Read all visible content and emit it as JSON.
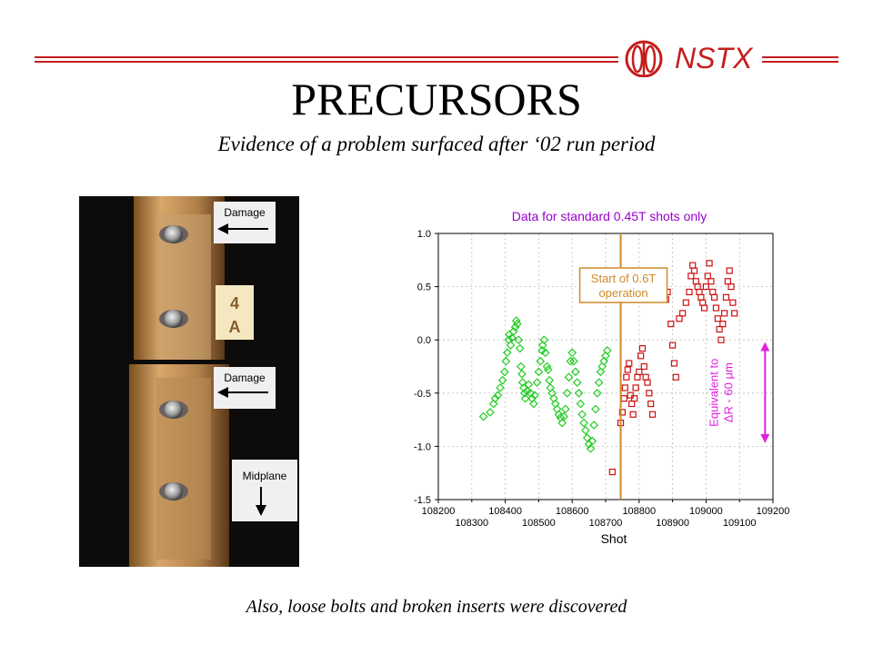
{
  "header": {
    "logo_text": "NSTX",
    "title": "PRECURSORS",
    "subtitle": "Evidence of a problem surfaced after ‘02 run period"
  },
  "photo": {
    "labels": {
      "damage_top": "Damage",
      "tag_line1": "4",
      "tag_line2": "A",
      "damage_bottom": "Damage",
      "midplane": "Midplane"
    }
  },
  "footer": {
    "text": "Also, loose bolts and broken inserts were discovered"
  },
  "chart_data": {
    "type": "scatter",
    "title": "Data for standard 0.45T shots only",
    "xlabel": "Shot",
    "ylabel": "",
    "xlim": [
      108200,
      109200
    ],
    "ylim": [
      -1.5,
      1.0
    ],
    "x_ticks_major": [
      "108200",
      "108400",
      "108600",
      "108800",
      "109000",
      "109200"
    ],
    "x_ticks_minor": [
      "108300",
      "108500",
      "108700",
      "108900",
      "109100"
    ],
    "y_ticks": [
      "1.0",
      "0.5",
      "0.0",
      "-0.5",
      "-1.0",
      "-1.5"
    ],
    "grid": true,
    "annotations": {
      "vline": {
        "x": 108745,
        "label_line1": "Start of 0.6T",
        "label_line2": "operation",
        "color": "#d08a2a"
      },
      "arrow": {
        "y_top": -0.02,
        "y_bottom": -0.97,
        "x": 109190,
        "label_line1": "Equivalent to",
        "label_line2": "ΔR - 60 μm",
        "color": "#e020e0"
      }
    },
    "series": [
      {
        "marker": "diamond",
        "color": "#22cc22",
        "points": [
          [
            108335,
            -0.72
          ],
          [
            108355,
            -0.68
          ],
          [
            108365,
            -0.6
          ],
          [
            108370,
            -0.55
          ],
          [
            108378,
            -0.52
          ],
          [
            108385,
            -0.45
          ],
          [
            108392,
            -0.38
          ],
          [
            108398,
            -0.3
          ],
          [
            108402,
            -0.2
          ],
          [
            108406,
            -0.12
          ],
          [
            108410,
            0.0
          ],
          [
            108412,
            0.05
          ],
          [
            108416,
            -0.05
          ],
          [
            108420,
            0.02
          ],
          [
            108425,
            0.08
          ],
          [
            108430,
            0.12
          ],
          [
            108433,
            0.18
          ],
          [
            108436,
            0.15
          ],
          [
            108440,
            0.0
          ],
          [
            108444,
            -0.08
          ],
          [
            108447,
            -0.25
          ],
          [
            108450,
            -0.32
          ],
          [
            108452,
            -0.4
          ],
          [
            108455,
            -0.45
          ],
          [
            108458,
            -0.5
          ],
          [
            108460,
            -0.55
          ],
          [
            108465,
            -0.48
          ],
          [
            108470,
            -0.42
          ],
          [
            108475,
            -0.5
          ],
          [
            108480,
            -0.55
          ],
          [
            108485,
            -0.6
          ],
          [
            108488,
            -0.52
          ],
          [
            108495,
            -0.4
          ],
          [
            108500,
            -0.3
          ],
          [
            108505,
            -0.2
          ],
          [
            108510,
            -0.1
          ],
          [
            108512,
            -0.05
          ],
          [
            108516,
            0.0
          ],
          [
            108520,
            -0.12
          ],
          [
            108525,
            -0.25
          ],
          [
            108528,
            -0.28
          ],
          [
            108532,
            -0.38
          ],
          [
            108535,
            -0.45
          ],
          [
            108540,
            -0.5
          ],
          [
            108545,
            -0.55
          ],
          [
            108550,
            -0.6
          ],
          [
            108555,
            -0.65
          ],
          [
            108560,
            -0.7
          ],
          [
            108565,
            -0.73
          ],
          [
            108570,
            -0.78
          ],
          [
            108575,
            -0.72
          ],
          [
            108580,
            -0.65
          ],
          [
            108585,
            -0.5
          ],
          [
            108590,
            -0.35
          ],
          [
            108595,
            -0.2
          ],
          [
            108600,
            -0.12
          ],
          [
            108605,
            -0.2
          ],
          [
            108610,
            -0.3
          ],
          [
            108615,
            -0.4
          ],
          [
            108620,
            -0.5
          ],
          [
            108625,
            -0.6
          ],
          [
            108630,
            -0.7
          ],
          [
            108635,
            -0.78
          ],
          [
            108640,
            -0.85
          ],
          [
            108645,
            -0.92
          ],
          [
            108650,
            -0.98
          ],
          [
            108655,
            -1.02
          ],
          [
            108660,
            -0.95
          ],
          [
            108665,
            -0.8
          ],
          [
            108670,
            -0.65
          ],
          [
            108675,
            -0.5
          ],
          [
            108680,
            -0.4
          ],
          [
            108685,
            -0.3
          ],
          [
            108690,
            -0.25
          ],
          [
            108695,
            -0.2
          ],
          [
            108700,
            -0.15
          ],
          [
            108705,
            -0.1
          ]
        ]
      },
      {
        "marker": "square",
        "color": "#cc1111",
        "points": [
          [
            108720,
            -1.24
          ],
          [
            108745,
            -0.78
          ],
          [
            108750,
            -0.68
          ],
          [
            108755,
            -0.55
          ],
          [
            108758,
            -0.45
          ],
          [
            108762,
            -0.35
          ],
          [
            108766,
            -0.28
          ],
          [
            108770,
            -0.22
          ],
          [
            108774,
            -0.52
          ],
          [
            108778,
            -0.6
          ],
          [
            108782,
            -0.7
          ],
          [
            108786,
            -0.55
          ],
          [
            108790,
            -0.45
          ],
          [
            108795,
            -0.35
          ],
          [
            108800,
            -0.3
          ],
          [
            108805,
            -0.15
          ],
          [
            108810,
            -0.08
          ],
          [
            108815,
            -0.25
          ],
          [
            108820,
            -0.35
          ],
          [
            108825,
            -0.4
          ],
          [
            108830,
            -0.5
          ],
          [
            108835,
            -0.6
          ],
          [
            108840,
            -0.7
          ],
          [
            108880,
            0.38
          ],
          [
            108885,
            0.45
          ],
          [
            108895,
            0.15
          ],
          [
            108900,
            -0.05
          ],
          [
            108905,
            -0.22
          ],
          [
            108910,
            -0.35
          ],
          [
            108920,
            0.2
          ],
          [
            108930,
            0.25
          ],
          [
            108940,
            0.35
          ],
          [
            108950,
            0.45
          ],
          [
            108955,
            0.6
          ],
          [
            108960,
            0.7
          ],
          [
            108965,
            0.65
          ],
          [
            108970,
            0.55
          ],
          [
            108975,
            0.5
          ],
          [
            108980,
            0.45
          ],
          [
            108985,
            0.4
          ],
          [
            108990,
            0.35
          ],
          [
            108995,
            0.3
          ],
          [
            109000,
            0.5
          ],
          [
            109005,
            0.6
          ],
          [
            109010,
            0.72
          ],
          [
            109015,
            0.55
          ],
          [
            109020,
            0.45
          ],
          [
            109025,
            0.4
          ],
          [
            109030,
            0.3
          ],
          [
            109035,
            0.2
          ],
          [
            109040,
            0.1
          ],
          [
            109045,
            0.0
          ],
          [
            109050,
            0.15
          ],
          [
            109055,
            0.25
          ],
          [
            109060,
            0.4
          ],
          [
            109065,
            0.55
          ],
          [
            109070,
            0.65
          ],
          [
            109075,
            0.5
          ],
          [
            109080,
            0.35
          ],
          [
            109085,
            0.25
          ]
        ]
      }
    ]
  }
}
